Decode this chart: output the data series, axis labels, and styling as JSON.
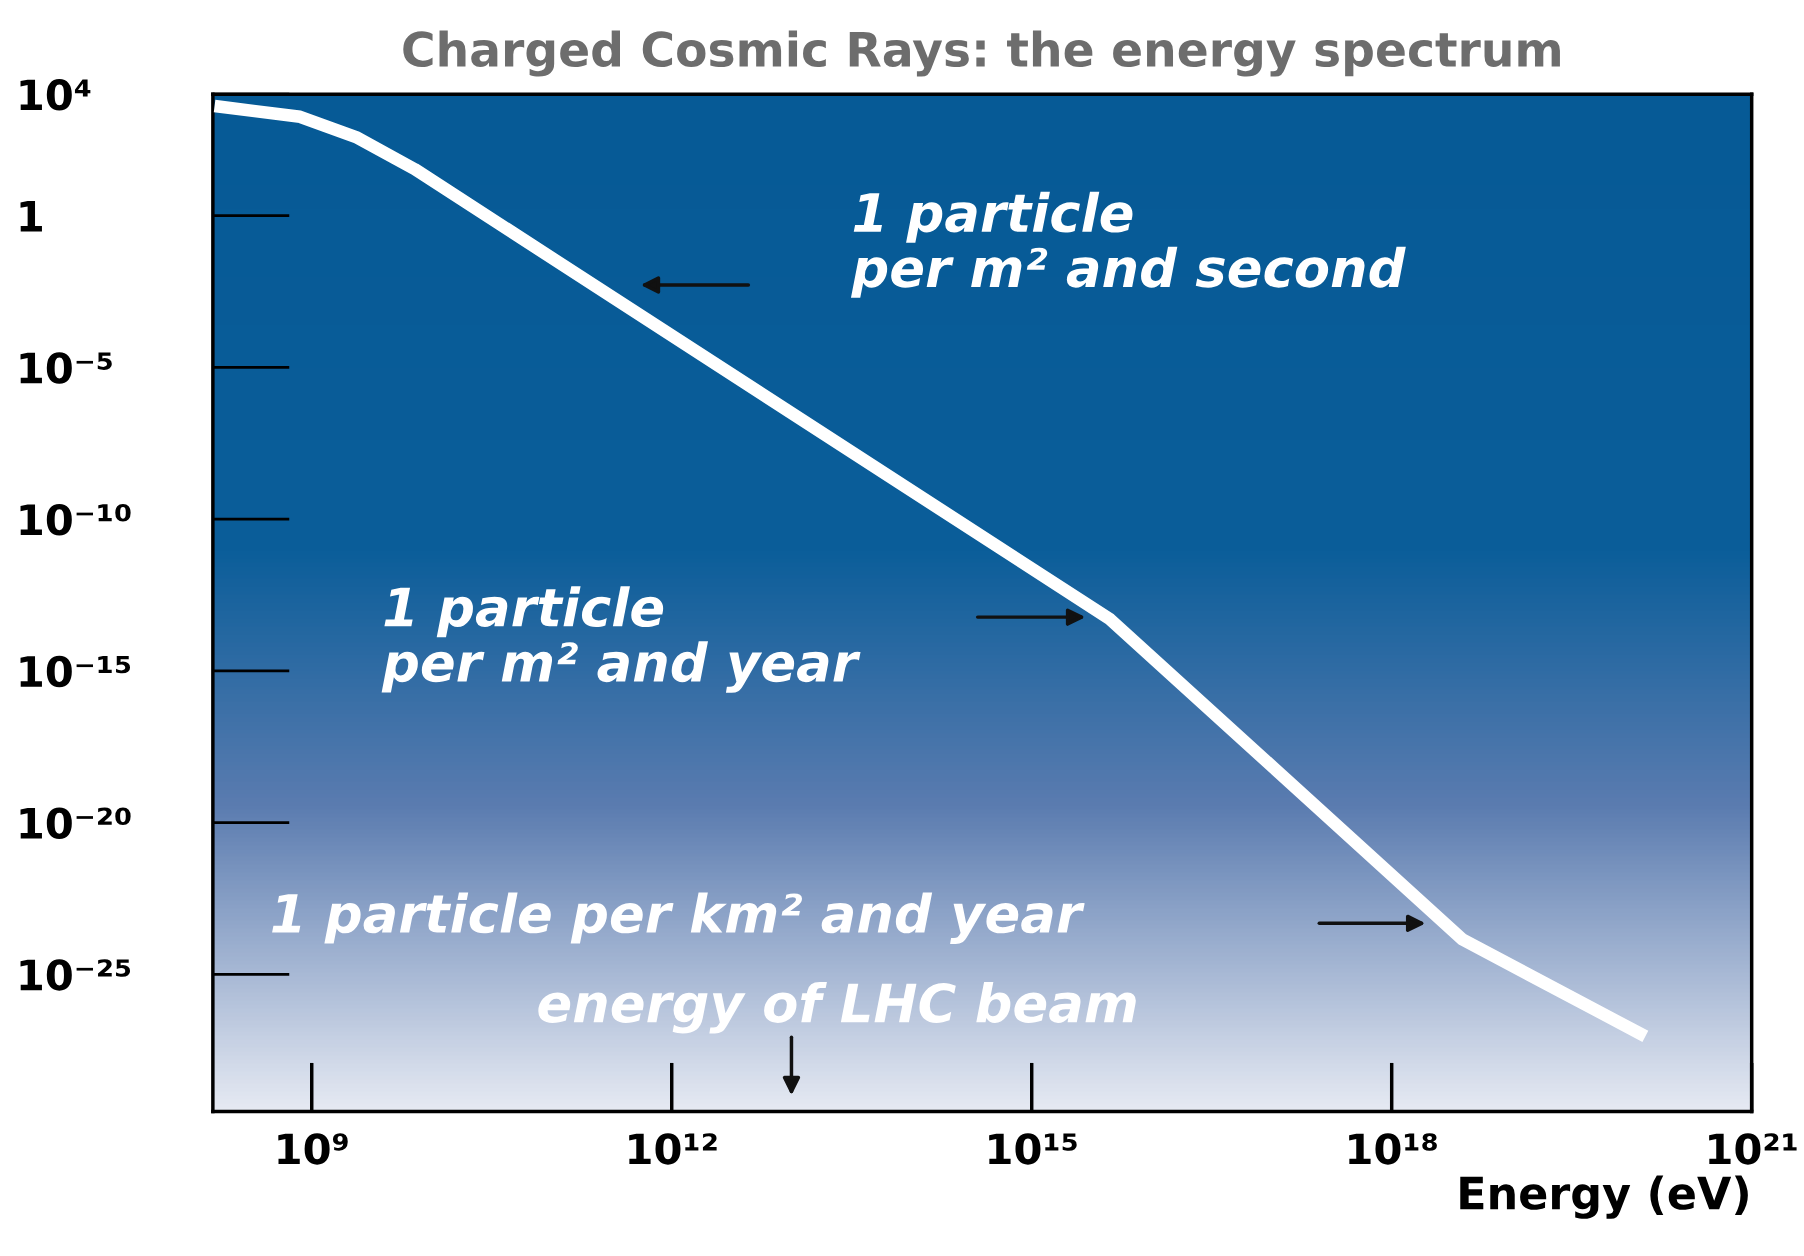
{
  "chart_data": {
    "type": "line",
    "title": "Charged Cosmic Rays: the energy spectrum",
    "xlabel": "Energy (eV)",
    "x": [
      155000000.0,
      800000000.0,
      2400000000.0,
      7200000000.0,
      4500000000000000.0,
      3.9e+18,
      1.3e+20
    ],
    "series": [
      {
        "color": "#ffffff",
        "values": [
          4100,
          1800,
          370,
          34,
          5e-14,
          1.4e-24,
          9e-28
        ]
      }
    ],
    "log": "xy",
    "xlim": [
      150000000.0,
      1e+21
    ],
    "ylim": [
      3e-30,
      10000.0
    ],
    "xticks": [
      {
        "value": 1000000000.0,
        "label": "10⁹"
      },
      {
        "value": 1000000000000.0,
        "label": "10¹²"
      },
      {
        "value": 1000000000000000.0,
        "label": "10¹⁵"
      },
      {
        "value": 1e+18,
        "label": "10¹⁸"
      },
      {
        "value": 1e+21,
        "label": "10²¹"
      }
    ],
    "yticks": [
      {
        "value": 10000.0,
        "label": "10⁴"
      },
      {
        "value": 1,
        "label": "1"
      },
      {
        "value": 1e-05,
        "label": "10⁻⁵"
      },
      {
        "value": 1e-10,
        "label": "10⁻¹⁰"
      },
      {
        "value": 1e-15,
        "label": "10⁻¹⁵"
      },
      {
        "value": 1e-20,
        "label": "10⁻²⁰"
      },
      {
        "value": 1e-25,
        "label": "10⁻²⁵"
      }
    ],
    "annotations": [
      "1 particle\nper m² and second",
      "1 particle\nper m² and year",
      "1 particle per km² and year",
      "energy of LHC beam"
    ],
    "marker": "none",
    "line_style": "solid"
  }
}
